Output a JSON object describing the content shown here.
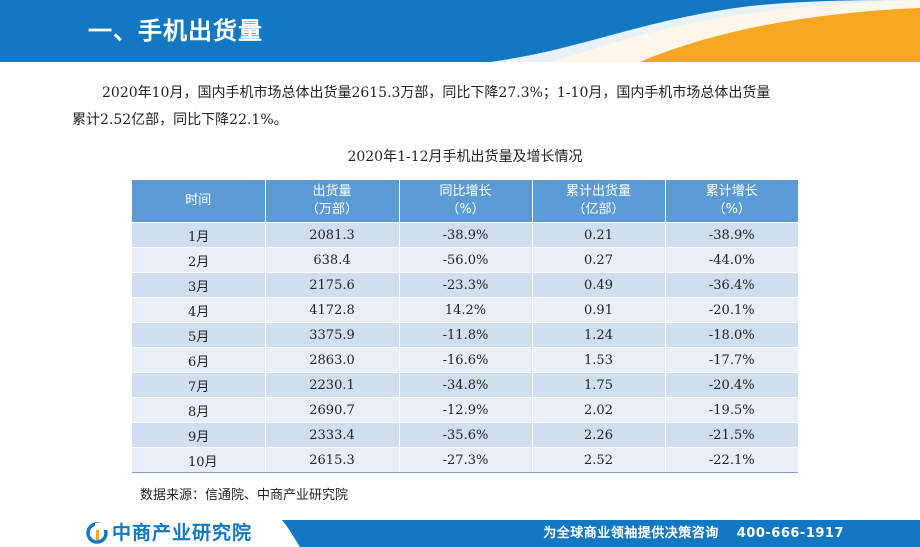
{
  "header": {
    "title": "一、手机出货量"
  },
  "intro": {
    "line1": "2020年10月，国内手机市场总体出货量2615.3万部，同比下降27.3%；1-10月，国内手机市场总体出货量",
    "line2": "累计2.52亿部，同比下降22.1%。"
  },
  "table": {
    "title": "2020年1-12月手机出货量及增长情况",
    "headers": [
      {
        "line1": "时间",
        "line2": ""
      },
      {
        "line1": "出货量",
        "line2": "（万部）"
      },
      {
        "line1": "同比增长",
        "line2": "（%）"
      },
      {
        "line1": "累计出货量",
        "line2": "（亿部）"
      },
      {
        "line1": "累计增长",
        "line2": "（%）"
      }
    ],
    "rows": [
      [
        "1月",
        "2081.3",
        "-38.9%",
        "0.21",
        "-38.9%"
      ],
      [
        "2月",
        "638.4",
        "-56.0%",
        "0.27",
        "-44.0%"
      ],
      [
        "3月",
        "2175.6",
        "-23.3%",
        "0.49",
        "-36.4%"
      ],
      [
        "4月",
        "4172.8",
        "14.2%",
        "0.91",
        "-20.1%"
      ],
      [
        "5月",
        "3375.9",
        "-11.8%",
        "1.24",
        "-18.0%"
      ],
      [
        "6月",
        "2863.0",
        "-16.6%",
        "1.53",
        "-17.7%"
      ],
      [
        "7月",
        "2230.1",
        "-34.8%",
        "1.75",
        "-20.4%"
      ],
      [
        "8月",
        "2690.7",
        "-12.9%",
        "2.02",
        "-19.5%"
      ],
      [
        "9月",
        "2333.4",
        "-35.6%",
        "2.26",
        "-21.5%"
      ],
      [
        "10月",
        "2615.3",
        "-27.3%",
        "2.52",
        "-22.1%"
      ]
    ]
  },
  "source": "数据来源：信通院、中商产业研究院",
  "footer": {
    "logo_text": "中商产业研究院",
    "slogan": "为全球商业领袖提供决策咨询",
    "phone": "400-666-1917"
  },
  "colors": {
    "brand_blue": "#1378c3",
    "accent_orange": "#f7a823",
    "table_header": "#5b9bd5",
    "row_odd": "#cfdff0",
    "row_even": "#e8eff7"
  }
}
